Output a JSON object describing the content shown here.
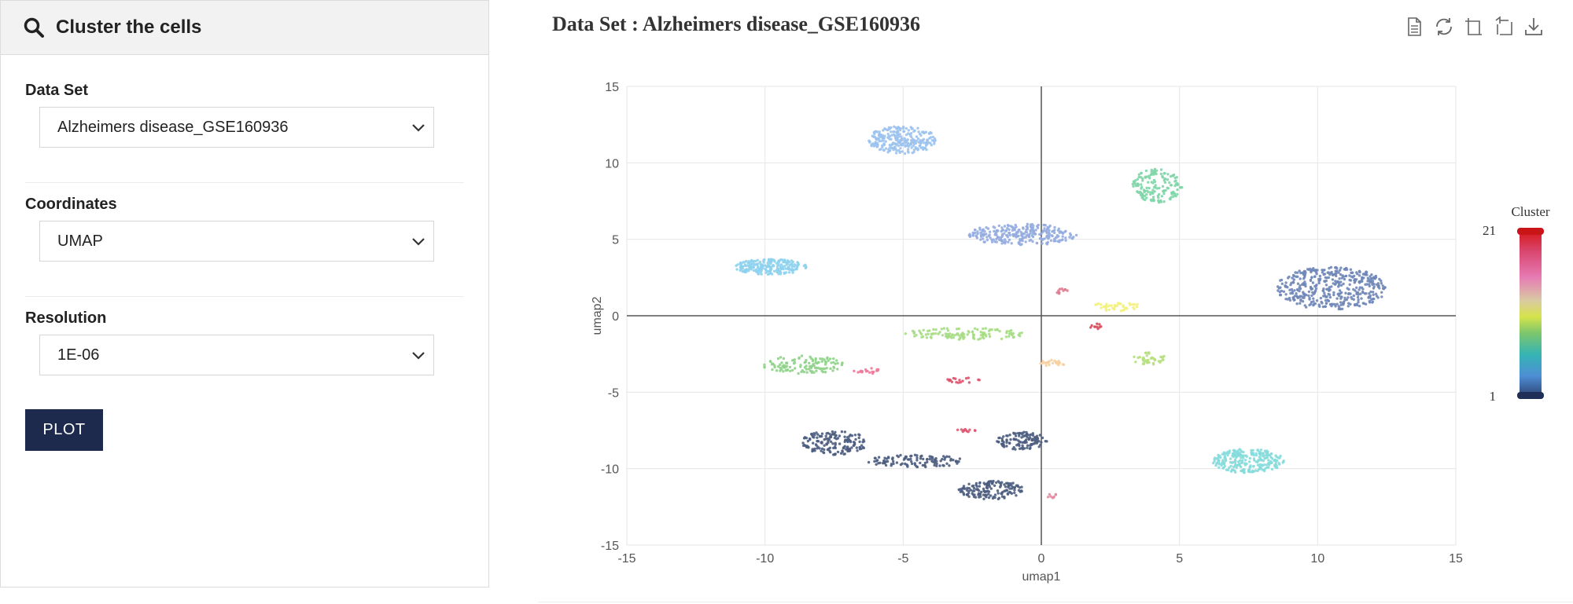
{
  "panel": {
    "title": "Cluster the cells",
    "dataset_label": "Data Set",
    "dataset_value": "Alzheimers disease_GSE160936",
    "coordinates_label": "Coordinates",
    "coordinates_value": "UMAP",
    "resolution_label": "Resolution",
    "resolution_value": "1E-06",
    "plot_button": "PLOT"
  },
  "plot_header": {
    "title": "Data Set : Alzheimers disease_GSE160936",
    "toolbar_icons": [
      "data-view-icon",
      "restore-icon",
      "zoom-icon",
      "zoom-reset-icon",
      "save-image-icon"
    ]
  },
  "chart_data": {
    "type": "scatter",
    "title": "",
    "xlabel": "umap1",
    "ylabel": "umap2",
    "xlim": [
      -15,
      15
    ],
    "ylim": [
      -15,
      15
    ],
    "xticks": [
      "-15",
      "-10",
      "-5",
      "0",
      "5",
      "10",
      "15"
    ],
    "yticks": [
      "15",
      "10",
      "5",
      "0",
      "-5",
      "-10",
      "-15"
    ],
    "grid": true,
    "visual_map": {
      "title": "Cluster",
      "min_label": "1",
      "max_label": "21",
      "min": 1,
      "max": 21
    },
    "clusters": [
      {
        "cx": -5.0,
        "cy": 11.5,
        "rx": 1.3,
        "ry": 0.9,
        "color": "#9cc3ee",
        "n": 260
      },
      {
        "cx": 4.2,
        "cy": 8.5,
        "rx": 0.9,
        "ry": 1.1,
        "color": "#7fd6a8",
        "n": 150
      },
      {
        "cx": -0.7,
        "cy": 5.3,
        "rx": 2.0,
        "ry": 0.7,
        "color": "#93acdf",
        "n": 260
      },
      {
        "cx": -9.8,
        "cy": 3.2,
        "rx": 1.3,
        "ry": 0.5,
        "color": "#8ed2ee",
        "n": 220
      },
      {
        "cx": 10.5,
        "cy": 1.8,
        "rx": 2.0,
        "ry": 1.4,
        "color": "#6f86b8",
        "n": 420
      },
      {
        "cx": -2.8,
        "cy": -1.2,
        "rx": 2.2,
        "ry": 0.4,
        "color": "#a6dd84",
        "n": 120
      },
      {
        "cx": -8.6,
        "cy": -3.2,
        "rx": 1.5,
        "ry": 0.6,
        "color": "#8fd38a",
        "n": 120
      },
      {
        "cx": 3.9,
        "cy": -2.8,
        "rx": 0.6,
        "ry": 0.4,
        "color": "#b6e07d",
        "n": 40
      },
      {
        "cx": 2.7,
        "cy": 0.6,
        "rx": 0.9,
        "ry": 0.3,
        "color": "#f3f17c",
        "n": 40
      },
      {
        "cx": 0.4,
        "cy": -3.1,
        "rx": 0.5,
        "ry": 0.2,
        "color": "#f7cfa0",
        "n": 25
      },
      {
        "cx": -6.3,
        "cy": -3.6,
        "rx": 0.5,
        "ry": 0.2,
        "color": "#ee7a9b",
        "n": 18
      },
      {
        "cx": -2.8,
        "cy": -4.2,
        "rx": 0.6,
        "ry": 0.2,
        "color": "#e0506a",
        "n": 18
      },
      {
        "cx": -2.7,
        "cy": -7.5,
        "rx": 0.4,
        "ry": 0.1,
        "color": "#e05a72",
        "n": 14
      },
      {
        "cx": 0.7,
        "cy": 1.6,
        "rx": 0.3,
        "ry": 0.2,
        "color": "#e07a8e",
        "n": 10
      },
      {
        "cx": 0.4,
        "cy": -11.8,
        "rx": 0.2,
        "ry": 0.15,
        "color": "#e88aa0",
        "n": 8
      },
      {
        "cx": 1.9,
        "cy": -0.7,
        "rx": 0.3,
        "ry": 0.2,
        "color": "#d94b5d",
        "n": 10
      },
      {
        "cx": 7.5,
        "cy": -9.5,
        "rx": 1.3,
        "ry": 0.8,
        "color": "#86dcdc",
        "n": 240
      },
      {
        "cx": -7.5,
        "cy": -8.3,
        "rx": 1.2,
        "ry": 0.8,
        "color": "#4d5d80",
        "n": 160
      },
      {
        "cx": -4.5,
        "cy": -9.5,
        "rx": 1.8,
        "ry": 0.4,
        "color": "#4d5d80",
        "n": 110
      },
      {
        "cx": -1.8,
        "cy": -11.4,
        "rx": 1.2,
        "ry": 0.6,
        "color": "#4d5d80",
        "n": 150
      },
      {
        "cx": -0.7,
        "cy": -8.2,
        "rx": 0.9,
        "ry": 0.6,
        "color": "#4d5d80",
        "n": 120
      }
    ]
  }
}
